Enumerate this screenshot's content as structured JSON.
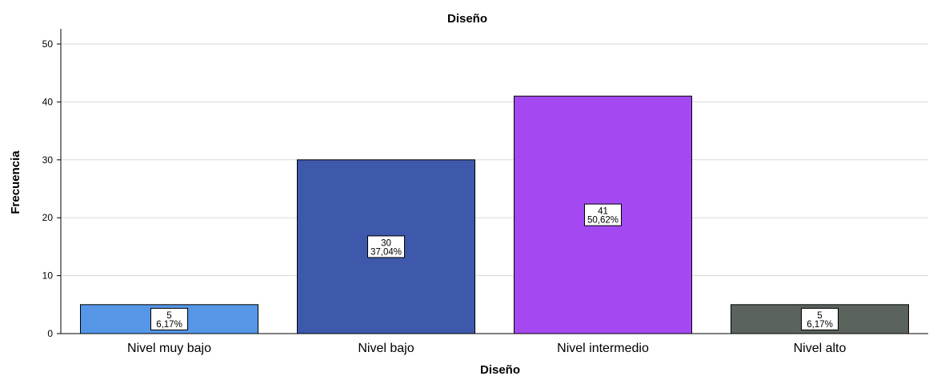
{
  "chart_data": {
    "type": "bar",
    "title": "Diseño",
    "xlabel": "Diseño",
    "ylabel": "Frecuencia",
    "ylim": [
      0,
      50
    ],
    "yticks": [
      "0",
      "10",
      "20",
      "30",
      "40",
      "50"
    ],
    "grid": true,
    "categories": [
      "Nivel muy bajo",
      "Nivel bajo",
      "Nivel intermedio",
      "Nivel alto"
    ],
    "values": [
      5,
      30,
      41,
      5
    ],
    "count_labels": [
      "5",
      "30",
      "41",
      "5"
    ],
    "percent_labels": [
      "6,17%",
      "37,04%",
      "50,62%",
      "6,17%"
    ],
    "colors": [
      "#5596e6",
      "#3e58ac",
      "#a449f2",
      "#5a635c"
    ]
  }
}
